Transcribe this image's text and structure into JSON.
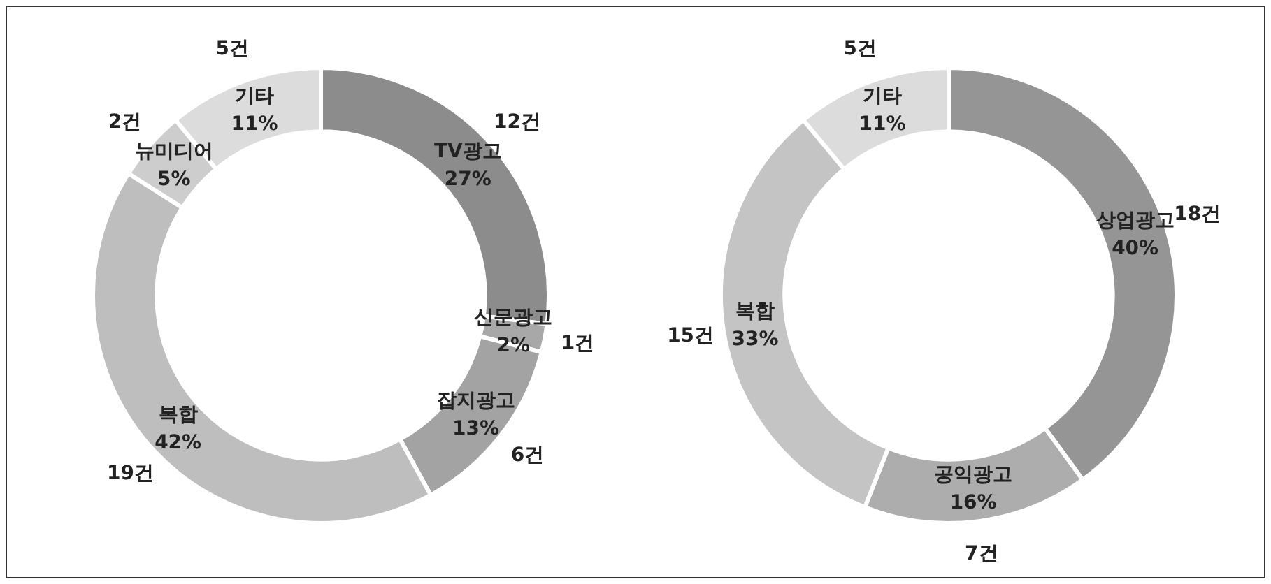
{
  "chart_data": [
    {
      "type": "donut",
      "categories": [
        "TV광고",
        "신문광고",
        "잡지광고",
        "복합",
        "뉴미디어",
        "기타"
      ],
      "values": [
        27,
        2,
        13,
        42,
        5,
        11
      ],
      "value_labels": [
        "27%",
        "2%",
        "13%",
        "42%",
        "5%",
        "11%"
      ],
      "annotations": [
        "12건",
        "1건",
        "6건",
        "19건",
        "2건",
        "5건"
      ],
      "colors": [
        "#8c8c8c",
        "#a8a8a8",
        "#a3a3a3",
        "#bebebe",
        "#cdcdcd",
        "#dcdcdc"
      ]
    },
    {
      "type": "donut",
      "categories": [
        "상업광고",
        "공익광고",
        "복합",
        "기타"
      ],
      "values": [
        40,
        16,
        33,
        11
      ],
      "value_labels": [
        "40%",
        "16%",
        "33%",
        "11%"
      ],
      "annotations": [
        "18건",
        "7건",
        "15건",
        "5건"
      ],
      "colors": [
        "#959595",
        "#adadad",
        "#c4c4c4",
        "#dcdcdc"
      ]
    }
  ]
}
